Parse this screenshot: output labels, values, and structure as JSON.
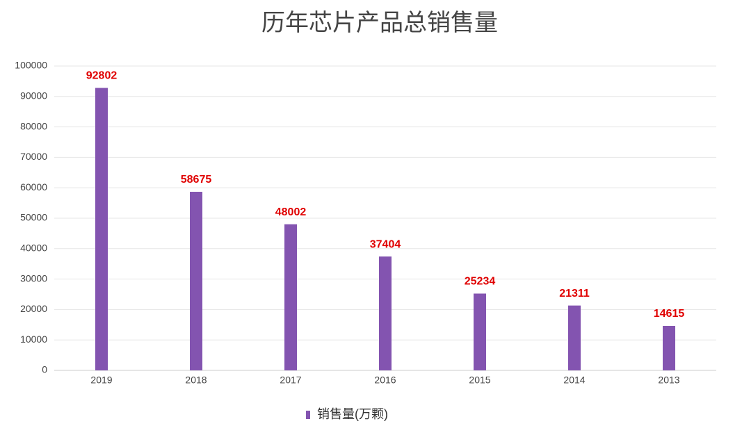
{
  "chart_data": {
    "type": "bar",
    "title": "历年芯片产品总销售量",
    "categories": [
      "2019",
      "2018",
      "2017",
      "2016",
      "2015",
      "2014",
      "2013"
    ],
    "series": [
      {
        "name": "销售量(万颗)",
        "color": "#8354b0",
        "values": [
          92802,
          58675,
          48002,
          37404,
          25234,
          21311,
          14615
        ]
      }
    ],
    "ylim": [
      0,
      100000
    ],
    "yticks": [
      0,
      10000,
      20000,
      30000,
      40000,
      50000,
      60000,
      70000,
      80000,
      90000,
      100000
    ],
    "grid": true,
    "legend": "bottom"
  }
}
